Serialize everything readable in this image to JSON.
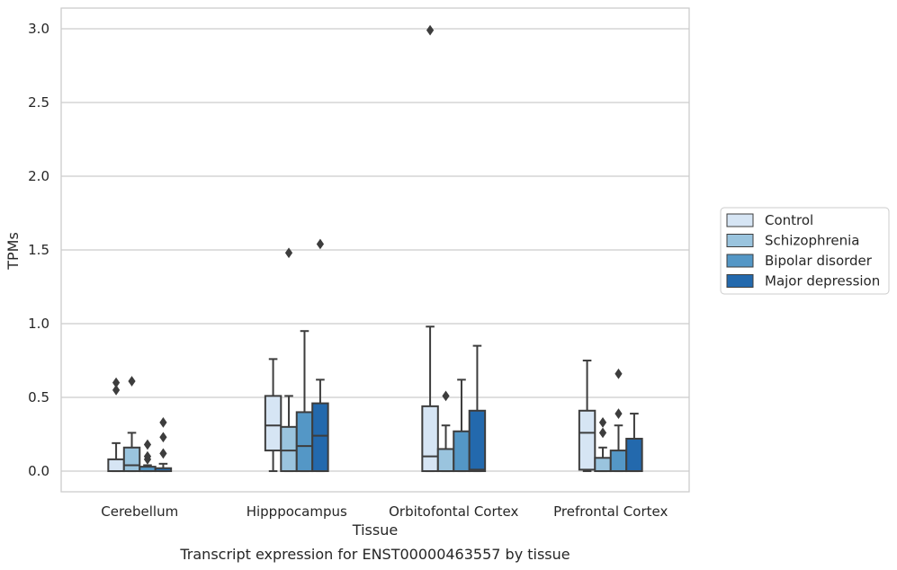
{
  "chart_data": {
    "type": "boxplot",
    "xlabel": "Tissue",
    "ylabel": "TPMs",
    "caption": "Transcript expression for ENST00000463557 by tissue",
    "ylim": [
      -0.14,
      3.14
    ],
    "yticks": [
      0.0,
      0.5,
      1.0,
      1.5,
      2.0,
      2.5,
      3.0
    ],
    "ytick_labels": [
      "0.0",
      "0.5",
      "1.0",
      "1.5",
      "2.0",
      "2.5",
      "3.0"
    ],
    "grid": "horizontal",
    "legend_position": "right-center",
    "categories": [
      "Cerebellum",
      "Hipppocampus",
      "Orbitofontal Cortex",
      "Prefrontal Cortex"
    ],
    "series": [
      {
        "name": "Control",
        "color": "#d6e5f4",
        "boxes": [
          {
            "whisker_low": 0.0,
            "q1": 0.0,
            "median": 0.0,
            "q3": 0.08,
            "whisker_high": 0.19,
            "outliers": [
              0.55,
              0.6
            ]
          },
          {
            "whisker_low": 0.0,
            "q1": 0.14,
            "median": 0.31,
            "q3": 0.51,
            "whisker_high": 0.76,
            "outliers": []
          },
          {
            "whisker_low": 0.0,
            "q1": 0.0,
            "median": 0.1,
            "q3": 0.44,
            "whisker_high": 0.98,
            "outliers": [
              2.99
            ]
          },
          {
            "whisker_low": 0.0,
            "q1": 0.01,
            "median": 0.26,
            "q3": 0.41,
            "whisker_high": 0.75,
            "outliers": []
          }
        ]
      },
      {
        "name": "Schizophrenia",
        "color": "#9ac4de",
        "boxes": [
          {
            "whisker_low": 0.0,
            "q1": 0.0,
            "median": 0.04,
            "q3": 0.16,
            "whisker_high": 0.26,
            "outliers": [
              0.61
            ]
          },
          {
            "whisker_low": 0.0,
            "q1": 0.0,
            "median": 0.14,
            "q3": 0.3,
            "whisker_high": 0.51,
            "outliers": [
              1.48
            ]
          },
          {
            "whisker_low": 0.0,
            "q1": 0.0,
            "median": 0.0,
            "q3": 0.15,
            "whisker_high": 0.31,
            "outliers": [
              0.51
            ]
          },
          {
            "whisker_low": 0.0,
            "q1": 0.0,
            "median": 0.0,
            "q3": 0.09,
            "whisker_high": 0.16,
            "outliers": [
              0.26,
              0.33
            ]
          }
        ]
      },
      {
        "name": "Bipolar disorder",
        "color": "#5497c6",
        "boxes": [
          {
            "whisker_low": 0.0,
            "q1": 0.0,
            "median": 0.0,
            "q3": 0.03,
            "whisker_high": 0.04,
            "outliers": [
              0.08,
              0.1,
              0.18
            ]
          },
          {
            "whisker_low": 0.0,
            "q1": 0.0,
            "median": 0.17,
            "q3": 0.4,
            "whisker_high": 0.95,
            "outliers": []
          },
          {
            "whisker_low": 0.0,
            "q1": 0.0,
            "median": 0.0,
            "q3": 0.27,
            "whisker_high": 0.62,
            "outliers": []
          },
          {
            "whisker_low": 0.0,
            "q1": 0.0,
            "median": 0.0,
            "q3": 0.14,
            "whisker_high": 0.31,
            "outliers": [
              0.39,
              0.66
            ]
          }
        ]
      },
      {
        "name": "Major depression",
        "color": "#2369ad",
        "boxes": [
          {
            "whisker_low": 0.0,
            "q1": 0.0,
            "median": 0.0,
            "q3": 0.02,
            "whisker_high": 0.05,
            "outliers": [
              0.12,
              0.23,
              0.33
            ]
          },
          {
            "whisker_low": 0.0,
            "q1": 0.0,
            "median": 0.24,
            "q3": 0.46,
            "whisker_high": 0.62,
            "outliers": [
              1.54
            ]
          },
          {
            "whisker_low": 0.0,
            "q1": 0.0,
            "median": 0.01,
            "q3": 0.41,
            "whisker_high": 0.85,
            "outliers": []
          },
          {
            "whisker_low": 0.0,
            "q1": 0.0,
            "median": 0.0,
            "q3": 0.22,
            "whisker_high": 0.39,
            "outliers": []
          }
        ]
      }
    ]
  }
}
